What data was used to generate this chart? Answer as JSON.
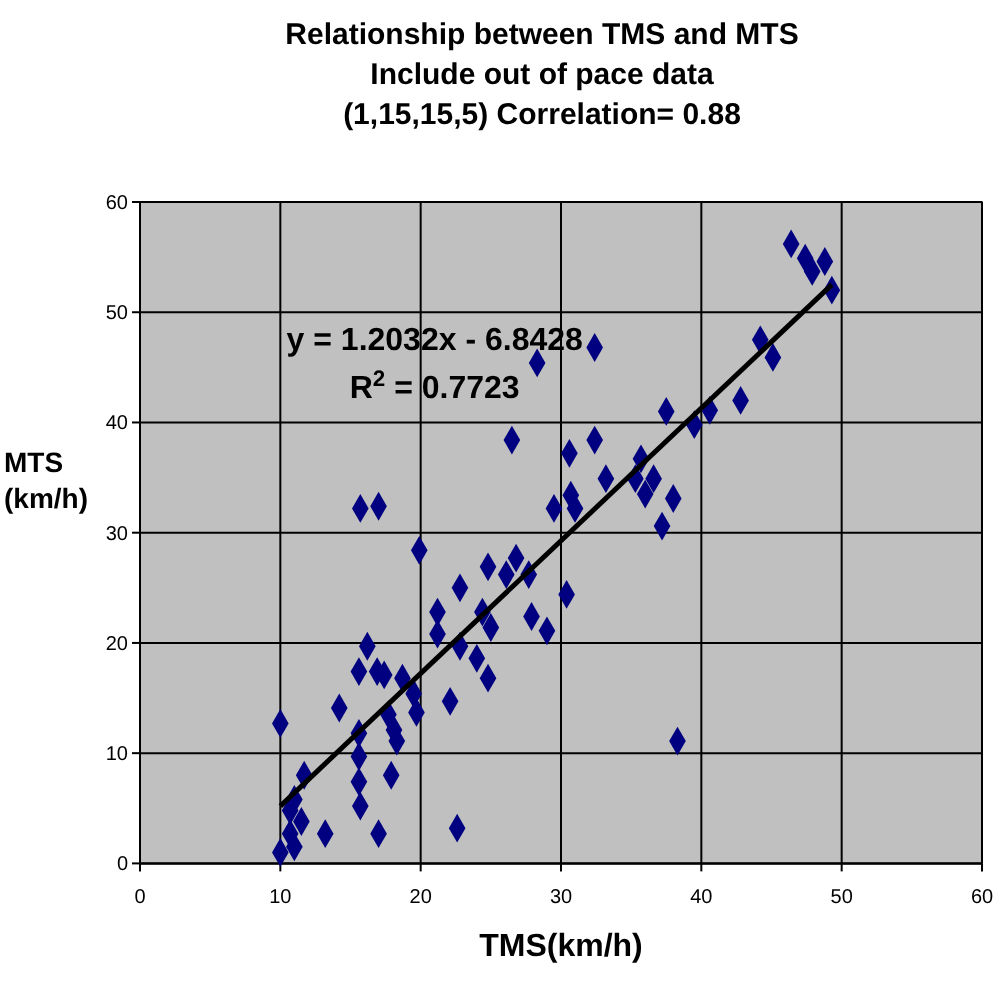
{
  "chart_data": {
    "type": "scatter",
    "title": "Relationship between TMS and MTS",
    "subtitle": "Include out of pace data\n(1,15,15,5) Correlation= 0.88",
    "xlabel": "TMS(km/h)",
    "ylabel": "MTS\n(km/h)",
    "annotations": [
      "y = 1.2032x - 6.8428",
      "R$^{2}$ = 0.7723"
    ],
    "xlim": [
      0,
      60
    ],
    "ylim": [
      0,
      60
    ],
    "xticks": [
      0,
      10,
      20,
      30,
      40,
      50,
      60
    ],
    "yticks": [
      0,
      10,
      20,
      30,
      40,
      50,
      60
    ],
    "grid": true,
    "series": [
      {
        "marker": "diamond",
        "color": "#000080",
        "x": [
          46.4,
          47.4,
          47.9,
          48.8,
          49.3,
          44.2,
          45.1,
          42.8,
          40.6,
          39.5,
          37.5,
          32.4,
          28.3,
          30.6,
          32.4,
          33.2,
          35.7,
          35.3,
          36.6,
          36.0,
          38.0,
          37.2,
          29.5,
          30.7,
          31.0,
          26.5,
          15.7,
          17.0,
          19.9,
          10.0,
          10.0,
          11.0,
          10.7,
          11.0,
          10.7,
          11.5,
          11.7,
          13.2,
          14.2,
          15.6,
          16.2,
          16.9,
          17.4,
          15.6,
          15.6,
          15.6,
          15.7,
          17.0,
          17.7,
          18.1,
          18.3,
          17.9,
          18.7,
          19.5,
          19.7,
          21.2,
          21.2,
          22.1,
          22.8,
          22.8,
          22.6,
          24.0,
          24.4,
          24.8,
          25.0,
          24.8,
          26.1,
          26.8,
          27.7,
          27.9,
          29.0,
          30.4,
          38.3
        ],
        "values": [
          56.2,
          54.9,
          53.7,
          54.6,
          52.0,
          47.5,
          45.9,
          42.0,
          41.1,
          39.8,
          41.0,
          46.8,
          45.4,
          37.2,
          38.4,
          34.9,
          36.7,
          34.9,
          34.9,
          33.5,
          33.1,
          30.6,
          32.2,
          33.4,
          32.2,
          38.4,
          32.2,
          32.4,
          28.4,
          12.7,
          1.0,
          1.5,
          2.7,
          5.8,
          4.8,
          3.8,
          8.0,
          2.7,
          14.1,
          17.4,
          19.7,
          17.4,
          17.1,
          11.8,
          9.7,
          7.4,
          5.2,
          2.7,
          13.5,
          12.1,
          11.1,
          8.0,
          16.8,
          15.4,
          13.7,
          22.8,
          20.8,
          14.7,
          25.0,
          19.7,
          3.2,
          18.6,
          22.8,
          26.9,
          21.4,
          16.8,
          26.2,
          27.7,
          26.2,
          22.4,
          21.1,
          24.4,
          11.1
        ]
      },
      {
        "type": "line",
        "marker": "none",
        "line_style": "solid",
        "color": "#000000",
        "x": [
          10,
          49.3
        ],
        "values": [
          5.2,
          52.5
        ]
      }
    ]
  }
}
